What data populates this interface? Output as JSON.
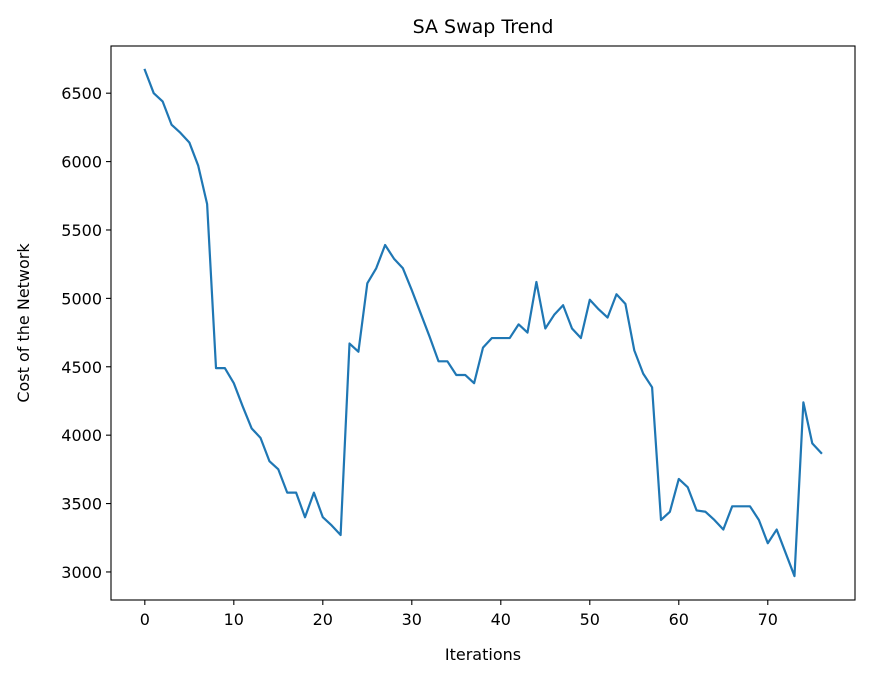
{
  "chart_data": {
    "type": "line",
    "title": "SA Swap Trend",
    "xlabel": "Iterations",
    "ylabel": "Cost of the Network",
    "xlim": [
      -3.8,
      79.8
    ],
    "ylim": [
      2795,
      6845
    ],
    "xticks": [
      0,
      10,
      20,
      30,
      40,
      50,
      60,
      70
    ],
    "yticks": [
      3000,
      3500,
      4000,
      4500,
      5000,
      5500,
      6000,
      6500
    ],
    "grid": false,
    "legend": "none",
    "series": [
      {
        "color": "#1f77b4",
        "x": [
          0,
          1,
          2,
          3,
          4,
          5,
          6,
          7,
          8,
          9,
          10,
          11,
          12,
          13,
          14,
          15,
          16,
          17,
          18,
          19,
          20,
          21,
          22,
          23,
          24,
          25,
          26,
          27,
          28,
          29,
          30,
          31,
          32,
          33,
          34,
          35,
          36,
          37,
          38,
          39,
          40,
          41,
          42,
          43,
          44,
          45,
          46,
          47,
          48,
          49,
          50,
          51,
          52,
          53,
          54,
          55,
          56,
          57,
          58,
          59,
          60,
          61,
          62,
          63,
          64,
          65,
          66,
          67,
          68,
          69,
          70,
          71,
          72,
          73,
          74,
          75,
          76
        ],
        "y": [
          6670,
          6500,
          6440,
          6270,
          6210,
          6140,
          5970,
          5690,
          4490,
          4490,
          4380,
          4210,
          4050,
          3980,
          3810,
          3750,
          3580,
          3580,
          3400,
          3580,
          3400,
          3340,
          3270,
          4670,
          4610,
          5110,
          5220,
          5390,
          5290,
          5220,
          5060,
          4890,
          4720,
          4540,
          4540,
          4440,
          4440,
          4380,
          4640,
          4710,
          4710,
          4710,
          4810,
          4750,
          5120,
          4780,
          4880,
          4950,
          4780,
          4710,
          4990,
          4920,
          4860,
          5030,
          4960,
          4620,
          4450,
          4350,
          3380,
          3440,
          3680,
          3620,
          3450,
          3440,
          3380,
          3310,
          3480,
          3480,
          3480,
          3380,
          3210,
          3310,
          3140,
          2970,
          4240,
          3940,
          3870
        ]
      }
    ]
  }
}
